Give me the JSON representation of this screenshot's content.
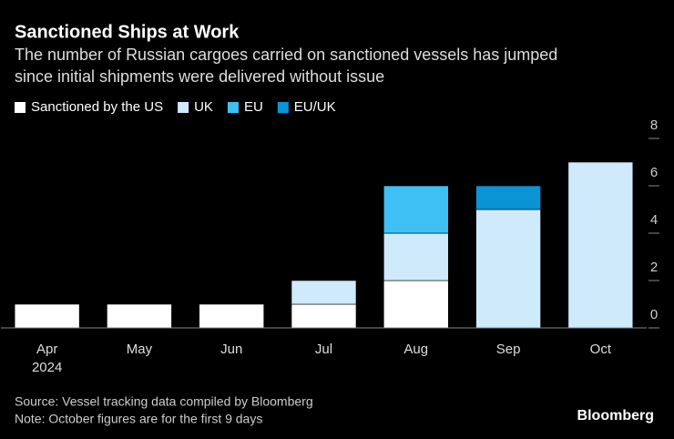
{
  "chart_data": {
    "type": "stacked_bar",
    "title": "Sanctioned Ships at Work",
    "subtitle": [
      "The number of Russian cargoes carried on sanctioned vessels has jumped",
      "since initial shipments were delivered without issue"
    ],
    "categories": [
      "Apr",
      "May",
      "Jun",
      "Jul",
      "Aug",
      "Sep",
      "Oct"
    ],
    "first_category_year": "2024",
    "series": [
      {
        "name": "Sanctioned by the US",
        "color": "#ffffff",
        "values": [
          1,
          1,
          1,
          1,
          2,
          0,
          0
        ]
      },
      {
        "name": "UK",
        "color": "#cfeafb",
        "values": [
          0,
          0,
          0,
          1,
          2,
          5,
          7
        ]
      },
      {
        "name": "EU",
        "color": "#3ec0f5",
        "values": [
          0,
          0,
          0,
          0,
          2,
          0,
          0
        ]
      },
      {
        "name": "EU/UK",
        "color": "#0a94d6",
        "values": [
          0,
          0,
          0,
          0,
          0,
          1,
          0
        ]
      }
    ],
    "ylim": [
      0,
      8
    ],
    "yticks": [
      0,
      2,
      4,
      6,
      8
    ],
    "y_axis_side": "right",
    "legend": "top-left",
    "notes": [
      "Source: Vessel tracking data compiled by Bloomberg",
      "Note: October figures are for the first 9 days"
    ],
    "brand": "Bloomberg"
  }
}
